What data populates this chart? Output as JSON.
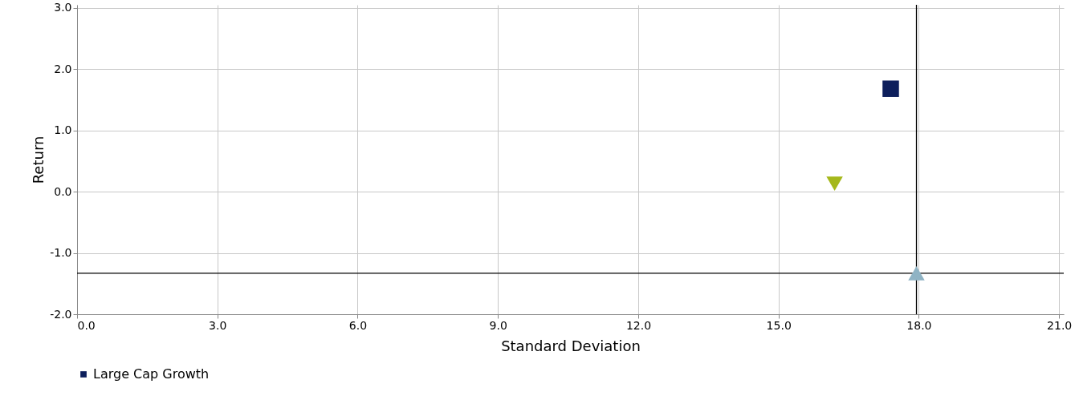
{
  "chart_data": {
    "type": "scatter",
    "xlabel": "Standard Deviation",
    "ylabel": "Return",
    "xlim": [
      0,
      21.1
    ],
    "ylim": [
      -2,
      3.05
    ],
    "xticks": [
      {
        "value": 0,
        "label": "0.0"
      },
      {
        "value": 3,
        "label": "3.0"
      },
      {
        "value": 6,
        "label": "6.0"
      },
      {
        "value": 9,
        "label": "9.0"
      },
      {
        "value": 12,
        "label": "12.0"
      },
      {
        "value": 15,
        "label": "15.0"
      },
      {
        "value": 18,
        "label": "18.0"
      },
      {
        "value": 21,
        "label": "21.0"
      }
    ],
    "yticks": [
      {
        "value": -2,
        "label": "-2.0"
      },
      {
        "value": -1,
        "label": "-1.0"
      },
      {
        "value": 0,
        "label": "0.0"
      },
      {
        "value": 1,
        "label": "1.0"
      },
      {
        "value": 2,
        "label": "2.0"
      },
      {
        "value": 3,
        "label": "3.0"
      }
    ],
    "grid": true,
    "legend": "bottom",
    "series": [
      {
        "name": "Large Cap Growth",
        "color": "#0d1f5c",
        "marker": "square",
        "x": [
          17.4
        ],
        "values": [
          1.68
        ]
      },
      {
        "color": "#8fb3c4",
        "marker": "triangle",
        "x": [
          17.95
        ],
        "values": [
          -1.33
        ]
      },
      {
        "color": "#a5b81b",
        "marker": "triangle-down",
        "x": [
          16.2
        ],
        "values": [
          0.13
        ]
      }
    ],
    "ref_lines": [
      {
        "axis": "x",
        "value": 17.95,
        "color": "#000000"
      },
      {
        "axis": "y",
        "value": -1.33,
        "color": "#000000"
      }
    ]
  }
}
